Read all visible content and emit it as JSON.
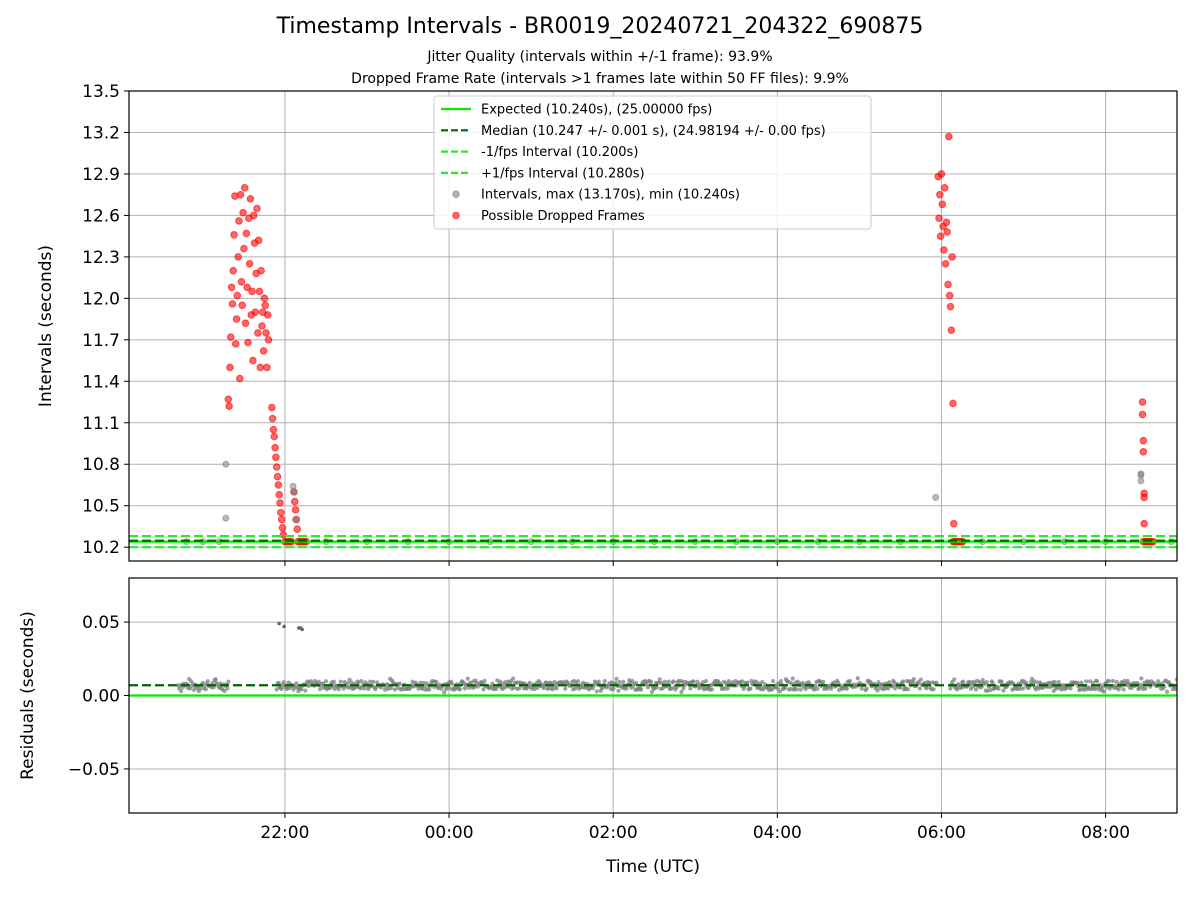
{
  "header": {
    "title": "Timestamp Intervals - BR0019_20240721_204322_690875",
    "subtitle_jitter": "Jitter Quality (intervals within +/-1 frame): 93.9%",
    "subtitle_dropped": "Dropped Frame Rate (intervals >1 frames late within 50 FF files): 9.9%"
  },
  "colors": {
    "expected": "#00ee00",
    "median": "#006400",
    "interval_bounds": "#22ee22",
    "intervals": "#808080",
    "dropped": "#ff0000",
    "grid": "#b0b0b0"
  },
  "chart_data": [
    {
      "type": "scatter",
      "panel": "top",
      "title": "Timestamp Intervals - BR0019_20240721_204322_690875",
      "xlabel": "",
      "ylabel": "Intervals (seconds)",
      "x_unit": "hours since 00:00 UTC",
      "xlim": [
        -3.9,
        8.87
      ],
      "ylim": [
        10.1,
        13.5
      ],
      "yticks": [
        10.2,
        10.5,
        10.8,
        11.1,
        11.4,
        11.7,
        12.0,
        12.3,
        12.6,
        12.9,
        13.2,
        13.5
      ],
      "ytick_labels": [
        "10.2",
        "10.5",
        "10.8",
        "11.1",
        "11.4",
        "11.7",
        "12.0",
        "12.3",
        "12.6",
        "12.9",
        "13.2",
        "13.5"
      ],
      "xticks": [
        -2,
        0,
        2,
        4,
        6,
        8
      ],
      "grid": true,
      "legend_position": "upper center",
      "legend": [
        {
          "label": "Expected (10.240s), (25.00000 fps)",
          "style": "solid",
          "color": "#00ee00"
        },
        {
          "label": "Median (10.247 +/- 0.001 s), (24.98194 +/- 0.00 fps)",
          "style": "dashed",
          "color": "#006400"
        },
        {
          "label": "-1/fps Interval (10.200s)",
          "style": "dashed",
          "color": "#22ee22"
        },
        {
          "label": "+1/fps Interval (10.280s)",
          "style": "dashed",
          "color": "#22ee22"
        },
        {
          "label": "Intervals, max (13.170s), min (10.240s)",
          "style": "marker",
          "color": "#808080"
        },
        {
          "label": "Possible Dropped Frames",
          "style": "marker",
          "color": "#ff0000"
        }
      ],
      "hlines": [
        {
          "name": "Expected",
          "y": 10.24,
          "style": "solid"
        },
        {
          "name": "Median",
          "y": 10.247,
          "style": "dashed"
        },
        {
          "name": "-1/fps Interval",
          "y": 10.2,
          "style": "dashed"
        },
        {
          "name": "+1/fps Interval",
          "y": 10.28,
          "style": "dashed"
        }
      ],
      "series": [
        {
          "name": "Possible Dropped Frames",
          "color": "#ff0000",
          "points": [
            [
              -2.69,
              11.27
            ],
            [
              -2.68,
              11.22
            ],
            [
              -2.67,
              11.5
            ],
            [
              -2.66,
              11.72
            ],
            [
              -2.65,
              12.08
            ],
            [
              -2.64,
              11.96
            ],
            [
              -2.63,
              12.2
            ],
            [
              -2.62,
              12.46
            ],
            [
              -2.61,
              12.74
            ],
            [
              -2.6,
              11.67
            ],
            [
              -2.59,
              11.85
            ],
            [
              -2.58,
              12.02
            ],
            [
              -2.57,
              12.3
            ],
            [
              -2.56,
              12.56
            ],
            [
              -2.55,
              11.42
            ],
            [
              -2.54,
              12.75
            ],
            [
              -2.53,
              12.12
            ],
            [
              -2.52,
              11.95
            ],
            [
              -2.51,
              12.62
            ],
            [
              -2.5,
              12.36
            ],
            [
              -2.49,
              12.8
            ],
            [
              -2.48,
              11.82
            ],
            [
              -2.47,
              12.47
            ],
            [
              -2.46,
              12.08
            ],
            [
              -2.45,
              11.68
            ],
            [
              -2.44,
              12.58
            ],
            [
              -2.43,
              12.25
            ],
            [
              -2.42,
              12.72
            ],
            [
              -2.41,
              11.88
            ],
            [
              -2.4,
              12.05
            ],
            [
              -2.39,
              11.55
            ],
            [
              -2.38,
              12.6
            ],
            [
              -2.37,
              12.4
            ],
            [
              -2.36,
              11.9
            ],
            [
              -2.35,
              12.18
            ],
            [
              -2.34,
              12.65
            ],
            [
              -2.33,
              11.75
            ],
            [
              -2.32,
              12.42
            ],
            [
              -2.31,
              12.05
            ],
            [
              -2.3,
              11.5
            ],
            [
              -2.29,
              12.2
            ],
            [
              -2.28,
              11.8
            ],
            [
              -2.27,
              11.9
            ],
            [
              -2.26,
              11.62
            ],
            [
              -2.25,
              12.0
            ],
            [
              -2.24,
              11.95
            ],
            [
              -2.23,
              11.75
            ],
            [
              -2.22,
              11.5
            ],
            [
              -2.21,
              11.88
            ],
            [
              -2.2,
              11.7
            ],
            [
              -2.16,
              11.21
            ],
            [
              -2.15,
              11.13
            ],
            [
              -2.14,
              11.05
            ],
            [
              -2.13,
              11.0
            ],
            [
              -2.12,
              10.92
            ],
            [
              -2.11,
              10.85
            ],
            [
              -2.1,
              10.78
            ],
            [
              -2.09,
              10.71
            ],
            [
              -2.08,
              10.65
            ],
            [
              -2.07,
              10.58
            ],
            [
              -2.06,
              10.52
            ],
            [
              -2.05,
              10.45
            ],
            [
              -2.04,
              10.4
            ],
            [
              -2.03,
              10.34
            ],
            [
              -2.02,
              10.29
            ],
            [
              -2.0,
              10.24
            ],
            [
              -1.98,
              10.24
            ],
            [
              -1.96,
              10.24
            ],
            [
              -1.94,
              10.24
            ],
            [
              -1.92,
              10.24
            ],
            [
              -1.89,
              10.6
            ],
            [
              -1.88,
              10.53
            ],
            [
              -1.87,
              10.47
            ],
            [
              -1.86,
              10.4
            ],
            [
              -1.85,
              10.33
            ],
            [
              -1.84,
              10.24
            ],
            [
              -1.82,
              10.24
            ],
            [
              -1.8,
              10.24
            ],
            [
              -1.78,
              10.24
            ],
            [
              -1.76,
              10.24
            ],
            [
              -1.74,
              10.24
            ],
            [
              5.96,
              12.88
            ],
            [
              5.97,
              12.58
            ],
            [
              5.98,
              12.75
            ],
            [
              5.99,
              12.45
            ],
            [
              6.0,
              12.9
            ],
            [
              6.01,
              12.68
            ],
            [
              6.02,
              12.52
            ],
            [
              6.03,
              12.35
            ],
            [
              6.04,
              12.8
            ],
            [
              6.05,
              12.25
            ],
            [
              6.06,
              12.55
            ],
            [
              6.07,
              12.48
            ],
            [
              6.08,
              12.1
            ],
            [
              6.09,
              13.17
            ],
            [
              6.1,
              12.02
            ],
            [
              6.11,
              11.94
            ],
            [
              6.12,
              11.77
            ],
            [
              6.13,
              12.3
            ],
            [
              6.14,
              11.24
            ],
            [
              6.15,
              10.37
            ],
            [
              6.14,
              10.24
            ],
            [
              6.16,
              10.24
            ],
            [
              6.18,
              10.24
            ],
            [
              6.2,
              10.24
            ],
            [
              6.22,
              10.24
            ],
            [
              6.24,
              10.24
            ],
            [
              6.26,
              10.24
            ],
            [
              8.45,
              11.25
            ],
            [
              8.45,
              11.16
            ],
            [
              8.46,
              10.97
            ],
            [
              8.46,
              10.89
            ],
            [
              8.47,
              10.59
            ],
            [
              8.47,
              10.56
            ],
            [
              8.47,
              10.37
            ],
            [
              8.46,
              10.24
            ],
            [
              8.48,
              10.24
            ],
            [
              8.5,
              10.24
            ],
            [
              8.52,
              10.24
            ],
            [
              8.54,
              10.24
            ],
            [
              8.56,
              10.24
            ],
            [
              8.58,
              10.24
            ]
          ]
        },
        {
          "name": "Intervals",
          "color": "#808080",
          "points": [
            [
              -3.2,
              10.24
            ],
            [
              -3.0,
              10.24
            ],
            [
              -2.8,
              10.24
            ],
            [
              -2.72,
              10.8
            ],
            [
              -2.72,
              10.41
            ],
            [
              -1.9,
              10.64
            ],
            [
              -1.89,
              10.6
            ],
            [
              -1.87,
              10.4
            ],
            [
              5.93,
              10.56
            ],
            [
              8.43,
              10.73
            ],
            [
              8.43,
              10.72
            ],
            [
              8.43,
              10.68
            ],
            [
              -1.5,
              10.24
            ],
            [
              -1.0,
              10.24
            ],
            [
              -0.5,
              10.24
            ],
            [
              0.0,
              10.24
            ],
            [
              0.5,
              10.24
            ],
            [
              1.0,
              10.24
            ],
            [
              1.5,
              10.24
            ],
            [
              2.0,
              10.24
            ],
            [
              2.5,
              10.24
            ],
            [
              3.0,
              10.24
            ],
            [
              3.5,
              10.24
            ],
            [
              4.0,
              10.24
            ],
            [
              4.5,
              10.24
            ],
            [
              5.0,
              10.24
            ],
            [
              5.5,
              10.24
            ],
            [
              6.5,
              10.24
            ],
            [
              7.0,
              10.24
            ],
            [
              7.5,
              10.24
            ],
            [
              8.0,
              10.24
            ],
            [
              8.8,
              10.24
            ]
          ]
        }
      ]
    },
    {
      "type": "scatter",
      "panel": "bottom",
      "title": "",
      "xlabel": "Time (UTC)",
      "ylabel": "Residuals (seconds)",
      "x_unit": "hours since 00:00 UTC",
      "xlim": [
        -3.9,
        8.87
      ],
      "ylim": [
        -0.08,
        0.08
      ],
      "yticks": [
        -0.05,
        0.0,
        0.05
      ],
      "ytick_labels": [
        "−0.05",
        "0.00",
        "0.05"
      ],
      "xticks": [
        -2,
        0,
        2,
        4,
        6,
        8
      ],
      "xtick_labels": [
        "22:00",
        "00:00",
        "02:00",
        "04:00",
        "06:00",
        "08:00"
      ],
      "grid": true,
      "hlines": [
        {
          "name": "Expected",
          "y": 0.0,
          "style": "solid"
        },
        {
          "name": "Median",
          "y": 0.007,
          "style": "dashed"
        }
      ],
      "residual_band": {
        "x_start": -3.3,
        "x_end": 8.87,
        "gaps": [
          [
            -2.68,
            -2.1
          ],
          [
            5.95,
            6.1
          ]
        ],
        "center": 0.007,
        "spread": 0.003
      },
      "series": [
        {
          "name": "Residuals (outliers)",
          "color": "#808080",
          "points": [
            [
              -2.07,
              0.049
            ],
            [
              -2.01,
              0.047
            ],
            [
              -1.83,
              0.046
            ],
            [
              -1.81,
              0.046
            ],
            [
              -1.79,
              0.045
            ]
          ]
        }
      ]
    }
  ]
}
